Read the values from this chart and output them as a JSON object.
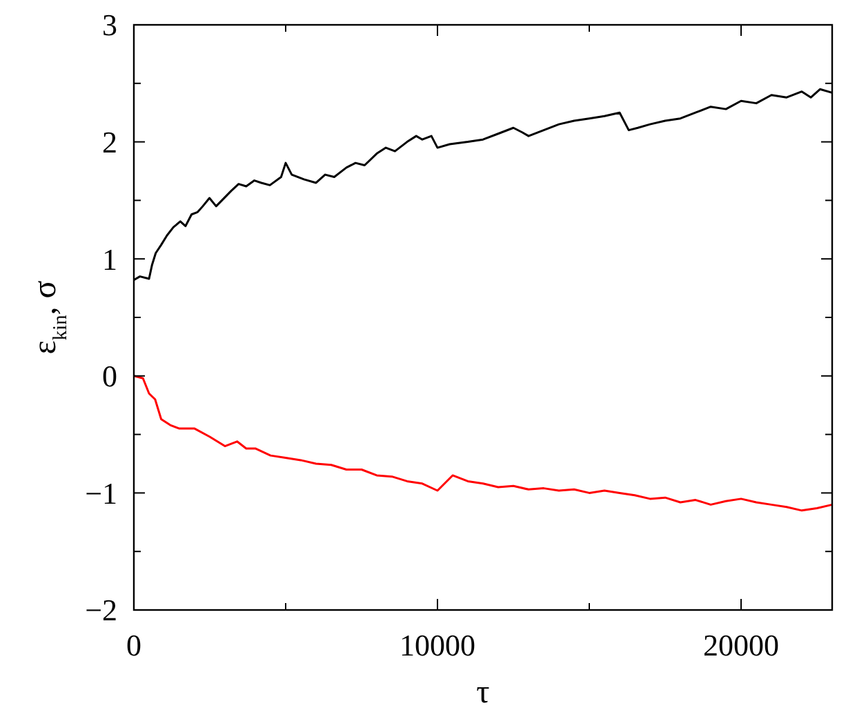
{
  "chart_data": {
    "type": "line",
    "xlabel": "τ",
    "ylabel": "ε$_{kin}$, σ",
    "xlim": [
      0,
      23000
    ],
    "ylim": [
      -2,
      3
    ],
    "xticks": [
      0,
      {
        "value": 5000,
        "label": null
      },
      10000,
      {
        "value": 15000,
        "label": null
      },
      20000
    ],
    "yticks": [
      -2,
      {
        "value": -1.5,
        "label": null
      },
      -1,
      {
        "value": -0.5,
        "label": null
      },
      0,
      {
        "value": 0.5,
        "label": null
      },
      1,
      {
        "value": 1.5,
        "label": null
      },
      2,
      {
        "value": 2.5,
        "label": null
      },
      3
    ],
    "grid": false,
    "line_style": "solid",
    "marker": "none",
    "series": [
      {
        "color": "#000000",
        "x": [
          0,
          200,
          500,
          600,
          720,
          900,
          1090,
          1300,
          1530,
          1700,
          1900,
          2100,
          2270,
          2490,
          2710,
          2900,
          3200,
          3450,
          3700,
          3970,
          4200,
          4480,
          4850,
          5000,
          5200,
          5600,
          6000,
          6300,
          6600,
          7000,
          7300,
          7600,
          8000,
          8300,
          8600,
          9000,
          9300,
          9500,
          9800,
          10000,
          10400,
          11000,
          11500,
          12000,
          12500,
          12800,
          13000,
          13500,
          14000,
          14500,
          15000,
          15500,
          16000,
          16300,
          16600,
          17000,
          17500,
          18000,
          18500,
          19000,
          19500,
          20000,
          20500,
          21000,
          21500,
          22000,
          22300,
          22600,
          23000
        ],
        "values": [
          0.82,
          0.85,
          0.83,
          0.95,
          1.05,
          1.12,
          1.2,
          1.27,
          1.32,
          1.28,
          1.38,
          1.4,
          1.45,
          1.52,
          1.45,
          1.5,
          1.58,
          1.64,
          1.62,
          1.67,
          1.65,
          1.63,
          1.7,
          1.82,
          1.72,
          1.68,
          1.65,
          1.72,
          1.7,
          1.78,
          1.82,
          1.8,
          1.9,
          1.95,
          1.92,
          2.0,
          2.05,
          2.02,
          2.05,
          1.95,
          1.98,
          2.0,
          2.02,
          2.07,
          2.12,
          2.08,
          2.05,
          2.1,
          2.15,
          2.18,
          2.2,
          2.22,
          2.25,
          2.1,
          2.12,
          2.15,
          2.18,
          2.2,
          2.25,
          2.3,
          2.28,
          2.35,
          2.33,
          2.4,
          2.38,
          2.43,
          2.38,
          2.45,
          2.42
        ]
      },
      {
        "color": "#ff0000",
        "x": [
          0,
          300,
          500,
          700,
          900,
          1200,
          1500,
          2000,
          2500,
          3000,
          3400,
          3700,
          4000,
          4500,
          5000,
          5500,
          6000,
          6500,
          7000,
          7500,
          8000,
          8500,
          9000,
          9500,
          10000,
          10500,
          11000,
          11500,
          12000,
          12500,
          13000,
          13500,
          14000,
          14500,
          15000,
          15500,
          16000,
          16500,
          17000,
          17500,
          18000,
          18500,
          19000,
          19500,
          20000,
          20500,
          21000,
          21500,
          22000,
          22500,
          23000
        ],
        "values": [
          0,
          -0.02,
          -0.15,
          -0.2,
          -0.37,
          -0.42,
          -0.45,
          -0.45,
          -0.52,
          -0.6,
          -0.56,
          -0.62,
          -0.62,
          -0.68,
          -0.7,
          -0.72,
          -0.75,
          -0.76,
          -0.8,
          -0.8,
          -0.85,
          -0.86,
          -0.9,
          -0.92,
          -0.98,
          -0.85,
          -0.9,
          -0.92,
          -0.95,
          -0.94,
          -0.97,
          -0.96,
          -0.98,
          -0.97,
          -1.0,
          -0.98,
          -1.0,
          -1.02,
          -1.05,
          -1.04,
          -1.08,
          -1.06,
          -1.1,
          -1.07,
          -1.05,
          -1.08,
          -1.1,
          -1.12,
          -1.15,
          -1.13,
          -1.1
        ]
      }
    ]
  }
}
